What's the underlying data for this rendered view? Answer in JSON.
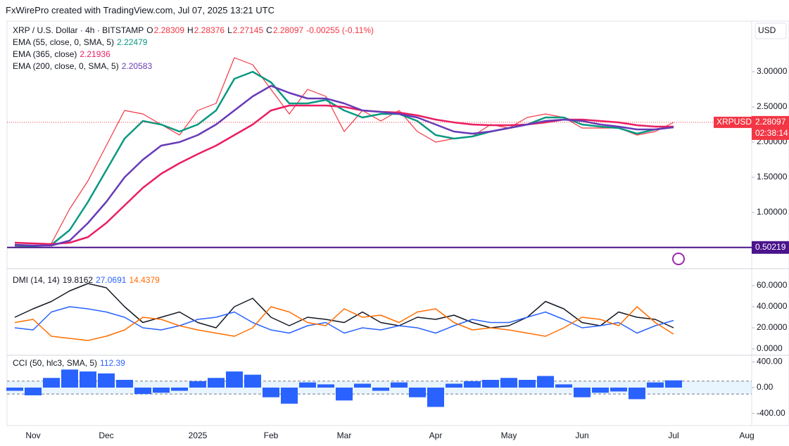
{
  "header": {
    "watermark": "FxWirePro created with TradingView.com, Jul 07, 2025 13:21 UTC"
  },
  "chart_data": [
    {
      "type": "line",
      "title": "XRP / U.S. Dollar · 4h · BITSTAMP",
      "ohlc": [
        {
          "label": "O",
          "value": 2.28309
        },
        {
          "label": "H",
          "value": 2.28376
        },
        {
          "label": "L",
          "value": 2.27145
        },
        {
          "label": "C",
          "value": 2.28097
        }
      ],
      "change": "-0.00255 (-0.11%)",
      "currency": "USD",
      "countdown": "02:38:14",
      "categories": [
        null,
        "Nov",
        null,
        null,
        null,
        "Dec",
        null,
        null,
        null,
        null,
        "2025",
        null,
        null,
        null,
        "Feb",
        null,
        null,
        null,
        "Mar",
        null,
        null,
        null,
        null,
        "Apr",
        null,
        null,
        null,
        "May",
        null,
        null,
        null,
        "Jun",
        null,
        null,
        null,
        null,
        "Jul",
        null,
        null,
        null,
        "Aug"
      ],
      "series": [
        {
          "name": "XRPUSD",
          "color": "#f23645",
          "last": 2.28097,
          "values": [
            0.52,
            0.51,
            0.56,
            1.05,
            1.45,
            1.95,
            2.45,
            2.4,
            2.25,
            2.1,
            2.45,
            2.55,
            3.2,
            3.1,
            2.75,
            2.4,
            2.75,
            2.65,
            2.15,
            2.45,
            2.3,
            2.45,
            2.15,
            2.0,
            2.05,
            2.08,
            2.25,
            2.2,
            2.35,
            2.4,
            2.35,
            2.2,
            2.2,
            2.2,
            2.1,
            2.15,
            2.28,
            null,
            null,
            null,
            null
          ]
        },
        {
          "name": "EMA (55, close, 0, SMA, 5)",
          "color": "#089981",
          "last": 2.22479,
          "values": [
            0.53,
            0.52,
            0.54,
            0.75,
            1.15,
            1.6,
            2.05,
            2.3,
            2.25,
            2.15,
            2.25,
            2.45,
            2.9,
            3.0,
            2.85,
            2.55,
            2.55,
            2.6,
            2.45,
            2.35,
            2.4,
            2.4,
            2.3,
            2.1,
            2.05,
            2.08,
            2.15,
            2.2,
            2.25,
            2.35,
            2.35,
            2.25,
            2.22,
            2.2,
            2.12,
            2.18,
            2.22,
            null,
            null,
            null,
            null
          ]
        },
        {
          "name": "EMA (365, close)",
          "color": "#e91e63",
          "last": 2.21936,
          "values": [
            0.57,
            0.56,
            0.55,
            0.57,
            0.65,
            0.85,
            1.1,
            1.35,
            1.55,
            1.7,
            1.83,
            1.95,
            2.1,
            2.25,
            2.45,
            2.52,
            2.52,
            2.52,
            2.5,
            2.45,
            2.43,
            2.42,
            2.38,
            2.32,
            2.28,
            2.25,
            2.24,
            2.24,
            2.25,
            2.28,
            2.32,
            2.32,
            2.3,
            2.28,
            2.24,
            2.22,
            2.22,
            null,
            null,
            null,
            null
          ]
        },
        {
          "name": "EMA (200, close, 0, SMA, 5)",
          "color": "#673ab7",
          "last": 2.20583,
          "values": [
            0.54,
            0.53,
            0.53,
            0.6,
            0.85,
            1.15,
            1.5,
            1.75,
            1.95,
            2.0,
            2.1,
            2.25,
            2.45,
            2.65,
            2.8,
            2.7,
            2.62,
            2.62,
            2.55,
            2.45,
            2.43,
            2.4,
            2.35,
            2.25,
            2.15,
            2.12,
            2.15,
            2.2,
            2.25,
            2.3,
            2.32,
            2.3,
            2.25,
            2.22,
            2.18,
            2.18,
            2.21,
            null,
            null,
            null,
            null
          ]
        }
      ],
      "hline": {
        "value": 0.50219,
        "color": "#4a148c"
      },
      "ylim": [
        0.22,
        3.72
      ],
      "yticks": [
        {
          "value": 3,
          "label": "3.00000"
        },
        {
          "value": 2.5,
          "label": "2.50000"
        },
        {
          "value": 2,
          "label": "2.00000"
        },
        {
          "value": 1.5,
          "label": "1.50000"
        },
        {
          "value": 1,
          "label": "1.00000"
        }
      ],
      "grid": false
    },
    {
      "type": "line",
      "title": "DMI (14, 14)",
      "series": [
        {
          "color": "#131722",
          "last": 19.8162,
          "values": [
            30,
            38,
            45,
            55,
            62,
            58,
            40,
            25,
            30,
            35,
            25,
            20,
            40,
            48,
            30,
            22,
            30,
            28,
            25,
            35,
            25,
            22,
            30,
            28,
            32,
            25,
            20,
            22,
            30,
            45,
            38,
            25,
            22,
            35,
            30,
            28,
            20,
            null,
            null,
            null,
            null
          ]
        },
        {
          "color": "#2962ff",
          "last": 27.0691,
          "values": [
            20,
            18,
            35,
            40,
            38,
            35,
            30,
            20,
            18,
            22,
            28,
            30,
            35,
            25,
            18,
            15,
            22,
            25,
            15,
            20,
            18,
            22,
            20,
            15,
            22,
            28,
            25,
            25,
            30,
            35,
            28,
            20,
            22,
            25,
            15,
            22,
            27,
            null,
            null,
            null,
            null
          ]
        },
        {
          "color": "#ff6d00",
          "last": 14.4379,
          "values": [
            25,
            28,
            12,
            10,
            8,
            12,
            18,
            30,
            28,
            22,
            18,
            15,
            12,
            20,
            40,
            35,
            25,
            22,
            38,
            30,
            32,
            25,
            35,
            38,
            25,
            18,
            20,
            18,
            15,
            12,
            20,
            30,
            28,
            22,
            40,
            25,
            14,
            null,
            null,
            null,
            null
          ]
        }
      ],
      "ylim": [
        -5,
        75
      ],
      "yticks": [
        {
          "value": 60,
          "label": "60.0000"
        },
        {
          "value": 40,
          "label": "40.0000"
        },
        {
          "value": 20,
          "label": "20.0000"
        },
        {
          "value": 0,
          "label": "0.0000"
        }
      ],
      "grid": false
    },
    {
      "type": "bar",
      "title": "CCI (50, hlc3, SMA, 5)",
      "last": 112.39,
      "color": "#2962ff",
      "values": [
        -50,
        -120,
        150,
        280,
        250,
        220,
        120,
        -100,
        -80,
        -50,
        100,
        150,
        250,
        200,
        -150,
        -250,
        80,
        50,
        -200,
        60,
        -50,
        80,
        -150,
        -300,
        60,
        100,
        120,
        150,
        120,
        180,
        50,
        -150,
        -80,
        -60,
        -180,
        80,
        112.39,
        null,
        null,
        null,
        null
      ],
      "bands": [
        100,
        -100
      ],
      "ylim": [
        -590,
        480
      ],
      "yticks": [
        {
          "value": 400,
          "label": "400.00"
        },
        {
          "value": 0,
          "label": "0.00"
        },
        {
          "value": -400,
          "label": "-400.00"
        }
      ],
      "grid": false
    }
  ]
}
